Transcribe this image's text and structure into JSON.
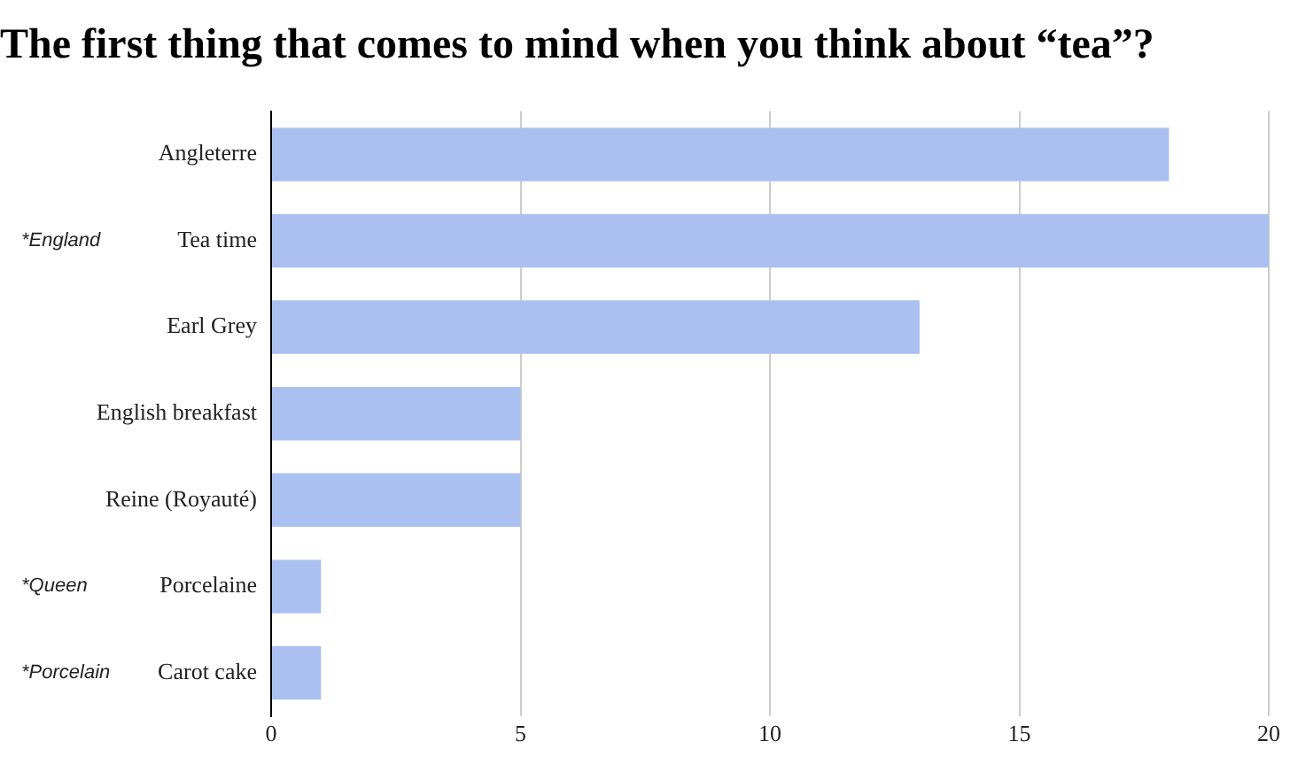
{
  "chart_data": {
    "type": "bar",
    "orientation": "horizontal",
    "title": "The first thing that comes to mind when you think about “tea”?",
    "categories": [
      "Angleterre",
      "Tea time",
      "Earl Grey",
      "English breakfast",
      "Reine (Royauté)",
      "Porcelaine",
      "Carot cake"
    ],
    "values": [
      18,
      20,
      13,
      5,
      5,
      1,
      1
    ],
    "color": "#aac0f0",
    "xlim": [
      0,
      20
    ],
    "xticks": [
      0,
      5,
      10,
      15,
      20
    ],
    "grid": "x",
    "legend": false,
    "annotations": [
      "*England",
      "*Queen",
      "*Porcelain"
    ]
  }
}
